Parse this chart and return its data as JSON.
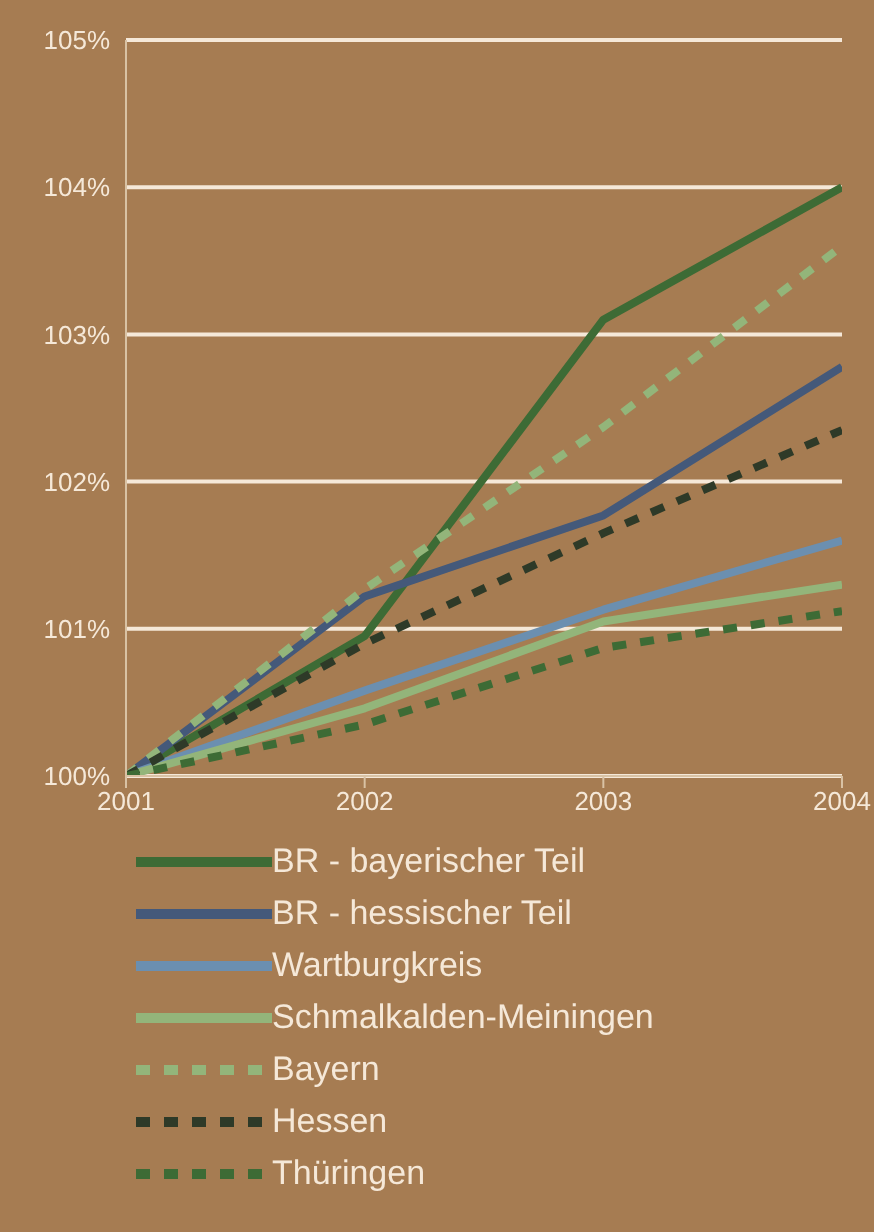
{
  "chart_data": {
    "type": "line",
    "x": [
      2001,
      2002,
      2003,
      2004
    ],
    "xlim": [
      2001,
      2004
    ],
    "xticks": [
      2001,
      2002,
      2003,
      2004
    ],
    "ylim": [
      100,
      105
    ],
    "yticks": [
      {
        "value": 100,
        "label": "100%"
      },
      {
        "value": 101,
        "label": "101%"
      },
      {
        "value": 102,
        "label": "102%"
      },
      {
        "value": 103,
        "label": "103%"
      },
      {
        "value": 104,
        "label": "104%"
      },
      {
        "value": 105,
        "label": "105%"
      }
    ],
    "grid": "y",
    "legend": "bottom",
    "series": [
      {
        "name": "BR - bayerischer Teil",
        "color": "#3d6b35",
        "line_style": "solid",
        "values": [
          100,
          100.95,
          103.1,
          104.0
        ]
      },
      {
        "name": "BR - hessischer Teil",
        "color": "#44597a",
        "line_style": "solid",
        "values": [
          100,
          101.22,
          101.77,
          102.78
        ]
      },
      {
        "name": "Wartburgkreis",
        "color": "#6b8fb0",
        "line_style": "solid",
        "values": [
          100,
          100.58,
          101.13,
          101.6
        ]
      },
      {
        "name": "Schmalkalden-Meiningen",
        "color": "#93b57a",
        "line_style": "solid",
        "values": [
          100,
          100.46,
          101.05,
          101.3
        ]
      },
      {
        "name": "Bayern",
        "color": "#93b57a",
        "line_style": "dashed",
        "values": [
          100,
          101.27,
          102.37,
          103.6
        ]
      },
      {
        "name": "Hessen",
        "color": "#2e3a28",
        "line_style": "dashed",
        "values": [
          100,
          100.9,
          101.65,
          102.35
        ]
      },
      {
        "name": "Thüringen",
        "color": "#3d6b35",
        "line_style": "dashed",
        "values": [
          100,
          100.35,
          100.87,
          101.12
        ]
      }
    ]
  }
}
